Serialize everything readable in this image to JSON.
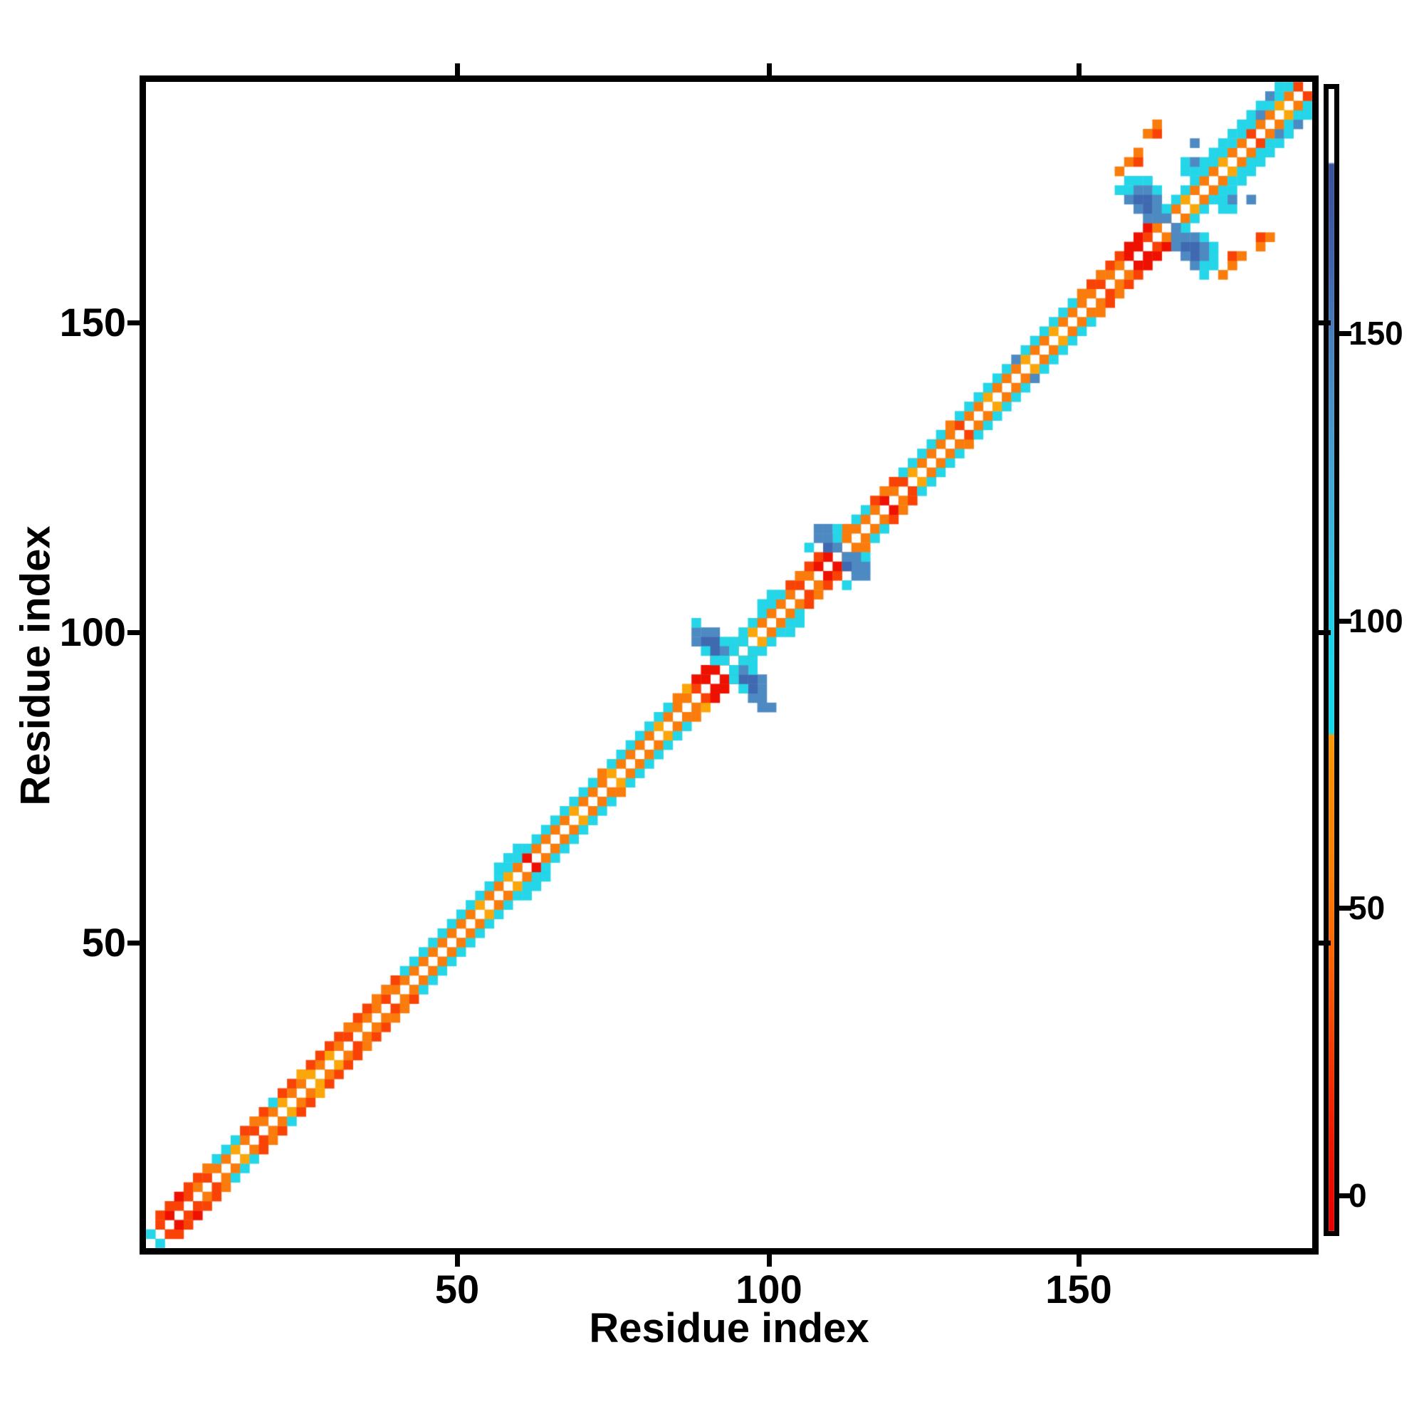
{
  "chart_data": {
    "type": "heatmap",
    "title": "",
    "xlabel": "Residue index",
    "ylabel": "Residue index",
    "x_ticks": [
      50,
      100,
      150
    ],
    "y_ticks": [
      50,
      100,
      150
    ],
    "x_tick_labels": [
      "50",
      "100",
      "150"
    ],
    "y_tick_labels": [
      "50",
      "100",
      "150"
    ],
    "axis_residue_range": [
      1,
      188
    ],
    "grid_cells": 124,
    "residues_per_cell": 1.52,
    "legend_position": "right-colorbar",
    "grid": "off",
    "colorbar": {
      "tick_values": [
        0,
        50,
        100,
        150
      ],
      "tick_labels": [
        "0",
        "50",
        "100",
        "150"
      ],
      "value_range": [
        -6,
        193
      ],
      "gradient_stops": [
        [
          0.0,
          "#E80000"
        ],
        [
          0.08,
          "#EF1802"
        ],
        [
          0.155,
          "#F43A03"
        ],
        [
          0.23,
          "#F96205"
        ],
        [
          0.315,
          "#FA7F08"
        ],
        [
          0.4,
          "#FA8F08"
        ],
        [
          0.434,
          "#FB9A0A"
        ],
        [
          0.436,
          "#18D8E9"
        ],
        [
          0.52,
          "#1ED2E7"
        ],
        [
          0.6,
          "#38BADD"
        ],
        [
          0.665,
          "#47A5D2"
        ],
        [
          0.73,
          "#4B90C5"
        ],
        [
          0.785,
          "#4A7FBA"
        ],
        [
          0.845,
          "#4166AB"
        ],
        [
          0.895,
          "#3C59A0"
        ],
        [
          0.934,
          "#3A5499"
        ],
        [
          0.936,
          "#FFFFFF"
        ],
        [
          1.0,
          "#FFFFFF"
        ]
      ]
    },
    "palette": {
      "or": "#F97C0C",
      "oy": "#FBA70B",
      "ro": "#F94306",
      "red": "#EE1100",
      "cy": "#25D5E8",
      "sb": "#4E8AC2",
      "db": "#3F69B0"
    },
    "diagonal_band": [
      [
        "cy",
        "",
        ""
      ],
      [
        "ro",
        "ro",
        ""
      ],
      [
        "red",
        "ro",
        ""
      ],
      [
        "ro",
        "red",
        ""
      ],
      [
        "ro",
        "ro",
        ""
      ],
      [
        "or",
        "ro",
        ""
      ],
      [
        "ro",
        "or",
        ""
      ],
      [
        "or",
        "cy",
        ""
      ],
      [
        "or",
        "cy",
        ""
      ],
      [
        "oy",
        "cy",
        ""
      ],
      [
        "or",
        "ro",
        ""
      ],
      [
        "ro",
        "or",
        ""
      ],
      [
        "or",
        "ro",
        ""
      ],
      [
        "or",
        "cy",
        ""
      ],
      [
        "oy",
        "ro",
        ""
      ],
      [
        "or",
        "ro",
        ""
      ],
      [
        "or",
        "oy",
        ""
      ],
      [
        "oy",
        "ro",
        ""
      ],
      [
        "or",
        "ro",
        ""
      ],
      [
        "oy",
        "ro",
        ""
      ],
      [
        "or",
        "ro",
        ""
      ],
      [
        "ro",
        "or",
        ""
      ],
      [
        "or",
        "ro",
        ""
      ],
      [
        "or",
        "ro",
        ""
      ],
      [
        "or",
        "or",
        ""
      ],
      [
        "ro",
        "or",
        ""
      ],
      [
        "or",
        "ro",
        ""
      ],
      [
        "or",
        "cy",
        ""
      ],
      [
        "or",
        "cy",
        ""
      ],
      [
        "or",
        "cy",
        ""
      ],
      [
        "or",
        "cy",
        ""
      ],
      [
        "or",
        "cy",
        ""
      ],
      [
        "or",
        "cy",
        ""
      ],
      [
        "or",
        "cy",
        ""
      ],
      [
        "or",
        "cy",
        ""
      ],
      [
        "oy",
        "cy",
        ""
      ],
      [
        "or",
        "cy",
        ""
      ],
      [
        "or",
        "cy",
        "cy"
      ],
      [
        "oy",
        "cy",
        "cy"
      ],
      [
        "or",
        "cy",
        "cy"
      ],
      [
        "red",
        "cy",
        ""
      ],
      [
        "or",
        "cy",
        ""
      ],
      [
        "or",
        "cy",
        ""
      ],
      [
        "or",
        "cy",
        ""
      ],
      [
        "or",
        "cy",
        ""
      ],
      [
        "oy",
        "cy",
        ""
      ],
      [
        "or",
        "cy",
        ""
      ],
      [
        "or",
        "cy",
        ""
      ],
      [
        "or",
        "or",
        ""
      ],
      [
        "oy",
        "cy",
        ""
      ],
      [
        "or",
        "cy",
        ""
      ],
      [
        "or",
        "cy",
        ""
      ],
      [
        "or",
        "cy",
        ""
      ],
      [
        "or",
        "cy",
        ""
      ],
      [
        "oy",
        "cy",
        ""
      ],
      [
        "or",
        "cy",
        ""
      ],
      [
        "or",
        "or",
        ""
      ],
      [
        "or",
        "oy",
        ""
      ],
      [
        "ro",
        "red",
        ""
      ],
      [
        "red",
        "red",
        ""
      ],
      [
        "red",
        "red",
        ""
      ],
      [
        "ro",
        "red",
        ""
      ],
      [
        "or",
        "cy",
        ""
      ],
      [
        "or",
        "cy",
        ""
      ],
      [
        "oy",
        "cy",
        ""
      ],
      [
        "or",
        "cy",
        "cy"
      ],
      [
        "or",
        "cy",
        "cy"
      ],
      [
        "or",
        "cy",
        ""
      ],
      [
        "or",
        "ro",
        ""
      ],
      [
        "ro",
        "or",
        ""
      ],
      [
        "or",
        "ro",
        ""
      ],
      [
        "red",
        "ro",
        ""
      ],
      [
        "red",
        "or",
        ""
      ],
      [
        "ro",
        "cy",
        ""
      ],
      [
        "or",
        "or",
        ""
      ],
      [
        "or",
        "cy",
        ""
      ],
      [
        "or",
        "cy",
        ""
      ],
      [
        "or",
        "ro",
        ""
      ],
      [
        "red",
        "or",
        ""
      ],
      [
        "or",
        "ro",
        ""
      ],
      [
        "ro",
        "cy",
        ""
      ],
      [
        "oy",
        "cy",
        ""
      ],
      [
        "or",
        "cy",
        ""
      ],
      [
        "or",
        "cy",
        ""
      ],
      [
        "or",
        "cy",
        ""
      ],
      [
        "or",
        "or",
        ""
      ],
      [
        "ro",
        "cy",
        ""
      ],
      [
        "or",
        "cy",
        ""
      ],
      [
        "or",
        "cy",
        ""
      ],
      [
        "oy",
        "cy",
        ""
      ],
      [
        "or",
        "cy",
        ""
      ],
      [
        "or",
        "cy",
        ""
      ],
      [
        "or",
        "sb",
        ""
      ],
      [
        "oy",
        "cy",
        ""
      ],
      [
        "or",
        "cy",
        ""
      ],
      [
        "or",
        "cy",
        ""
      ],
      [
        "oy",
        "cy",
        ""
      ],
      [
        "or",
        "cy",
        ""
      ],
      [
        "or",
        "cy",
        ""
      ],
      [
        "or",
        "or",
        ""
      ],
      [
        "or",
        "ro",
        ""
      ],
      [
        "ro",
        "or",
        ""
      ],
      [
        "or",
        "ro",
        ""
      ],
      [
        "or",
        "ro",
        ""
      ],
      [
        "red",
        "red",
        ""
      ],
      [
        "red",
        "red",
        ""
      ],
      [
        "ro",
        "red",
        ""
      ],
      [
        "or",
        "ro",
        ""
      ],
      [
        "or",
        "cy",
        ""
      ],
      [
        "or",
        "cy",
        ""
      ],
      [
        "oy",
        "cy",
        ""
      ],
      [
        "or",
        "cy",
        ""
      ],
      [
        "or",
        "cy",
        "cy"
      ],
      [
        "or",
        "cy",
        "cy"
      ],
      [
        "oy",
        "cy",
        "cy"
      ],
      [
        "or",
        "cy",
        "cy"
      ],
      [
        "or",
        "cy",
        "cy"
      ],
      [
        "ro",
        "cy",
        "cy"
      ],
      [
        "or",
        "sb",
        "cy"
      ],
      [
        "or",
        "cy",
        "sb"
      ],
      [
        "oy",
        "cy",
        "cy"
      ],
      [
        "or",
        "cy",
        ""
      ],
      [
        "ro",
        "or",
        ""
      ]
    ],
    "extra_cells": [
      [
        58,
        65,
        "sb"
      ],
      [
        59,
        65,
        "sb"
      ],
      [
        60,
        65,
        "sb"
      ],
      [
        58,
        64,
        "sb"
      ],
      [
        59,
        64,
        "db"
      ],
      [
        60,
        64,
        "db"
      ],
      [
        61,
        64,
        "cy"
      ],
      [
        59,
        63,
        "cy"
      ],
      [
        60,
        63,
        "db"
      ],
      [
        61,
        63,
        "sb"
      ],
      [
        60,
        62,
        "cy"
      ],
      [
        61,
        62,
        "cy"
      ],
      [
        62,
        63,
        "cy"
      ],
      [
        63,
        64,
        "cy"
      ],
      [
        58,
        66,
        "cy"
      ],
      [
        65,
        58,
        "sb"
      ],
      [
        65,
        59,
        "sb"
      ],
      [
        65,
        60,
        "sb"
      ],
      [
        64,
        58,
        "sb"
      ],
      [
        64,
        59,
        "db"
      ],
      [
        64,
        60,
        "db"
      ],
      [
        64,
        61,
        "cy"
      ],
      [
        63,
        59,
        "cy"
      ],
      [
        63,
        60,
        "db"
      ],
      [
        63,
        61,
        "sb"
      ],
      [
        62,
        60,
        "cy"
      ],
      [
        62,
        61,
        "cy"
      ],
      [
        63,
        62,
        "cy"
      ],
      [
        64,
        63,
        "cy"
      ],
      [
        65,
        57,
        "sb"
      ],
      [
        66,
        57,
        "sb"
      ],
      [
        71,
        75,
        "sb"
      ],
      [
        72,
        75,
        "sb"
      ],
      [
        71,
        76,
        "sb"
      ],
      [
        72,
        76,
        "sb"
      ],
      [
        72,
        74,
        "db"
      ],
      [
        73,
        74,
        "sb"
      ],
      [
        70,
        74,
        "cy"
      ],
      [
        73,
        76,
        "cy"
      ],
      [
        75,
        71,
        "sb"
      ],
      [
        75,
        72,
        "sb"
      ],
      [
        76,
        71,
        "sb"
      ],
      [
        76,
        72,
        "sb"
      ],
      [
        74,
        72,
        "db"
      ],
      [
        74,
        73,
        "sb"
      ],
      [
        74,
        70,
        "cy"
      ],
      [
        76,
        73,
        "cy"
      ],
      [
        75,
        73,
        "sb"
      ],
      [
        105,
        113,
        "cy"
      ],
      [
        106,
        113,
        "cy"
      ],
      [
        104,
        112,
        "cy"
      ],
      [
        105,
        112,
        "sb"
      ],
      [
        106,
        112,
        "sb"
      ],
      [
        107,
        112,
        "cy"
      ],
      [
        104,
        111,
        "sb"
      ],
      [
        105,
        111,
        "db"
      ],
      [
        106,
        111,
        "db"
      ],
      [
        107,
        111,
        "sb"
      ],
      [
        105,
        110,
        "sb"
      ],
      [
        106,
        110,
        "db"
      ],
      [
        107,
        110,
        "sb"
      ],
      [
        108,
        110,
        "cy"
      ],
      [
        106,
        109,
        "sb"
      ],
      [
        107,
        109,
        "sb"
      ],
      [
        108,
        109,
        "sb"
      ],
      [
        103,
        112,
        "cy"
      ],
      [
        104,
        113,
        "cy"
      ],
      [
        110,
        114,
        "cy"
      ],
      [
        111,
        114,
        "cy"
      ],
      [
        110,
        115,
        "cy"
      ],
      [
        111,
        115,
        "sb"
      ],
      [
        113,
        105,
        "cy"
      ],
      [
        113,
        106,
        "cy"
      ],
      [
        112,
        104,
        "cy"
      ],
      [
        112,
        105,
        "sb"
      ],
      [
        112,
        106,
        "sb"
      ],
      [
        112,
        107,
        "cy"
      ],
      [
        111,
        104,
        "sb"
      ],
      [
        111,
        105,
        "db"
      ],
      [
        111,
        106,
        "db"
      ],
      [
        111,
        107,
        "sb"
      ],
      [
        110,
        105,
        "sb"
      ],
      [
        110,
        106,
        "db"
      ],
      [
        110,
        107,
        "sb"
      ],
      [
        110,
        108,
        "cy"
      ],
      [
        109,
        106,
        "sb"
      ],
      [
        109,
        107,
        "sb"
      ],
      [
        109,
        108,
        "sb"
      ],
      [
        112,
        103,
        "cy"
      ],
      [
        113,
        104,
        "cy"
      ],
      [
        114,
        110,
        "cy"
      ],
      [
        114,
        111,
        "cy"
      ],
      [
        115,
        110,
        "cy"
      ],
      [
        115,
        111,
        "sb"
      ],
      [
        106,
        118,
        "or"
      ],
      [
        107,
        118,
        "ro"
      ],
      [
        107,
        119,
        "or"
      ],
      [
        104,
        115,
        "or"
      ],
      [
        105,
        115,
        "ro"
      ],
      [
        105,
        116,
        "or"
      ],
      [
        103,
        114,
        "or"
      ],
      [
        118,
        106,
        "or"
      ],
      [
        118,
        107,
        "ro"
      ],
      [
        119,
        107,
        "or"
      ],
      [
        115,
        104,
        "or"
      ],
      [
        115,
        105,
        "ro"
      ],
      [
        116,
        105,
        "or"
      ],
      [
        114,
        103,
        "or"
      ],
      [
        111,
        117,
        "sb"
      ],
      [
        117,
        111,
        "sb"
      ]
    ]
  }
}
